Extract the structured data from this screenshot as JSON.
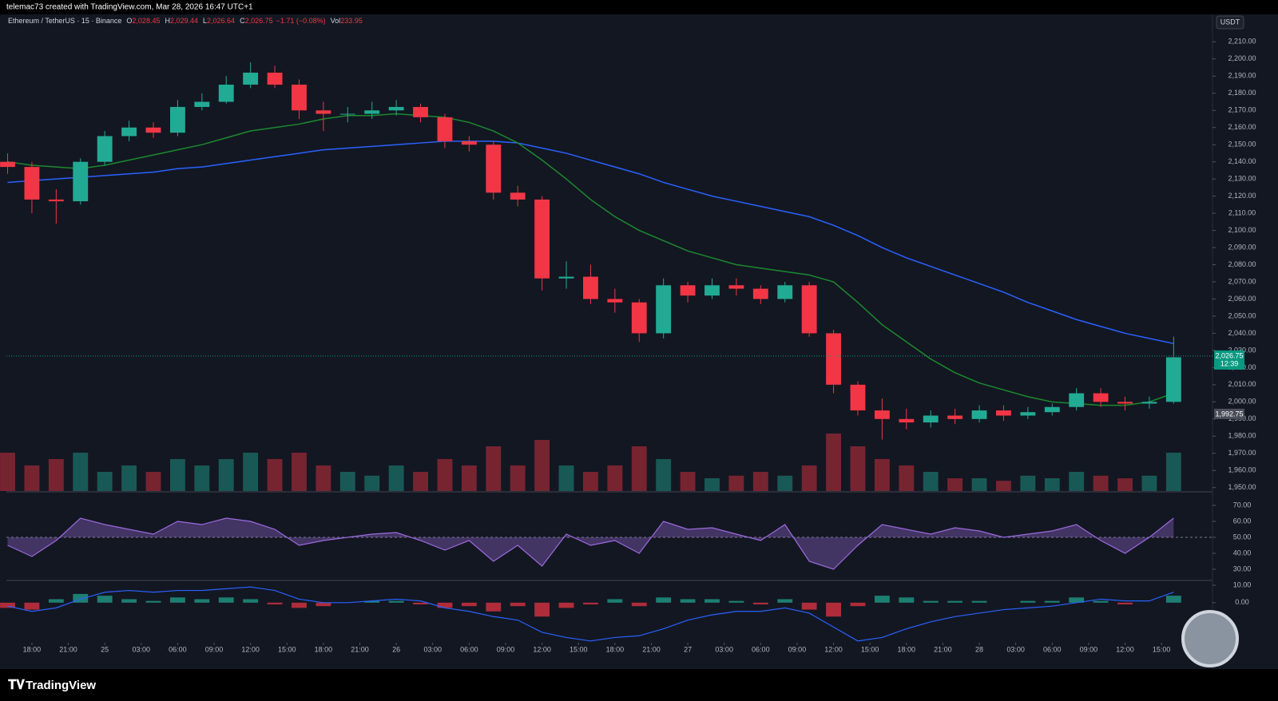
{
  "header": {
    "text": "telemac73 created with TradingView.com, Mar 28, 2026 16:47 UTC+1"
  },
  "chart_data": {
    "type": "candlestick",
    "symbol": "Ethereum / TetherUS · 15 · Binance",
    "ohlc_legend": [
      {
        "label": "O",
        "value": "2,028.45"
      },
      {
        "label": "H",
        "value": "2,029.44"
      },
      {
        "label": "L",
        "value": "2,026.64"
      },
      {
        "label": "C",
        "value": "2,026.75"
      }
    ],
    "change": "−1.71 (−0.08%)",
    "volume_legend": {
      "label": "Vol",
      "value": "233.95"
    },
    "currency": "USDT",
    "up_color": "#22ab94",
    "down_color": "#f23645",
    "x": [
      -2,
      0,
      2,
      4,
      6,
      8,
      10,
      12,
      14,
      16,
      18,
      20,
      22,
      24,
      26,
      28,
      30,
      32,
      34,
      36,
      38,
      40,
      42,
      44,
      46,
      48,
      50,
      52,
      54,
      56,
      58,
      60,
      62,
      64,
      66,
      68,
      70,
      72,
      74,
      76,
      78,
      80,
      82,
      84,
      86,
      88,
      90,
      92,
      94
    ],
    "open": [
      2140,
      2137,
      2118,
      2117,
      2140,
      2155,
      2160,
      2157,
      2172,
      2175,
      2185,
      2192,
      2185,
      2170,
      2168,
      2168,
      2170,
      2172,
      2166,
      2152,
      2150,
      2122,
      2118,
      2072,
      2073,
      2060,
      2058,
      2040,
      2068,
      2062,
      2068,
      2066,
      2060,
      2068,
      2040,
      2010,
      1995,
      1990,
      1988,
      1992,
      1990,
      1995,
      1992,
      1994,
      1997,
      2005,
      2000,
      1999,
      2000
    ],
    "high": [
      2145,
      2140,
      2124,
      2142,
      2158,
      2164,
      2163,
      2176,
      2180,
      2190,
      2198,
      2196,
      2188,
      2175,
      2172,
      2175,
      2176,
      2174,
      2168,
      2155,
      2152,
      2126,
      2120,
      2082,
      2080,
      2066,
      2060,
      2072,
      2070,
      2072,
      2072,
      2068,
      2070,
      2070,
      2042,
      2012,
      2002,
      1996,
      1995,
      1996,
      1998,
      1998,
      1997,
      1999,
      2008,
      2008,
      2003,
      2003,
      2038
    ],
    "low": [
      2133,
      2110,
      2104,
      2115,
      2138,
      2152,
      2154,
      2155,
      2170,
      2174,
      2183,
      2183,
      2165,
      2158,
      2163,
      2165,
      2167,
      2163,
      2148,
      2146,
      2118,
      2114,
      2065,
      2066,
      2057,
      2052,
      2035,
      2037,
      2058,
      2060,
      2062,
      2057,
      2058,
      2038,
      2005,
      1992,
      1978,
      1984,
      1985,
      1987,
      1988,
      1989,
      1990,
      1992,
      1995,
      1997,
      1995,
      1996,
      1999
    ],
    "close": [
      2137,
      2118,
      2117,
      2140,
      2155,
      2160,
      2157,
      2172,
      2175,
      2185,
      2192,
      2185,
      2170,
      2168,
      2168,
      2170,
      2172,
      2166,
      2152,
      2150,
      2122,
      2118,
      2072,
      2073,
      2060,
      2058,
      2040,
      2068,
      2062,
      2068,
      2066,
      2060,
      2068,
      2040,
      2010,
      1995,
      1990,
      1988,
      1992,
      1990,
      1995,
      1992,
      1994,
      1997,
      2005,
      2000,
      1999,
      2000,
      2026
    ],
    "lines": [
      {
        "color": "#2962ff",
        "values": [
          2128,
          2129,
          2130,
          2131,
          2132,
          2133,
          2134,
          2136,
          2137,
          2139,
          2141,
          2143,
          2145,
          2147,
          2148,
          2149,
          2150,
          2151,
          2152,
          2152,
          2152,
          2151,
          2148,
          2145,
          2141,
          2137,
          2133,
          2128,
          2124,
          2120,
          2117,
          2114,
          2111,
          2108,
          2103,
          2097,
          2090,
          2084,
          2079,
          2074,
          2069,
          2064,
          2058,
          2053,
          2048,
          2044,
          2040,
          2037,
          2034
        ]
      },
      {
        "color": "#1b8a2e",
        "values": [
          2140,
          2138,
          2137,
          2136,
          2138,
          2141,
          2144,
          2147,
          2150,
          2154,
          2158,
          2160,
          2162,
          2165,
          2167,
          2167,
          2168,
          2167,
          2166,
          2163,
          2158,
          2151,
          2141,
          2130,
          2118,
          2108,
          2100,
          2094,
          2088,
          2084,
          2080,
          2078,
          2076,
          2074,
          2070,
          2058,
          2045,
          2035,
          2025,
          2017,
          2011,
          2007,
          2003,
          2000,
          1999,
          1998,
          1998,
          2000,
          2005
        ]
      }
    ],
    "volume": {
      "values": [
        30,
        20,
        25,
        30,
        15,
        20,
        15,
        25,
        20,
        25,
        30,
        25,
        30,
        20,
        15,
        12,
        20,
        15,
        25,
        20,
        35,
        20,
        40,
        20,
        15,
        20,
        35,
        25,
        15,
        10,
        12,
        15,
        12,
        20,
        45,
        35,
        25,
        20,
        15,
        10,
        10,
        8,
        12,
        10,
        15,
        12,
        10,
        12,
        30
      ],
      "lim": [
        0,
        100
      ]
    },
    "xlim": [
      -2.1,
      97.2
    ],
    "xticks": [
      {
        "value": 0,
        "label": "18:00"
      },
      {
        "value": 3,
        "label": "21:00"
      },
      {
        "value": 6,
        "label": "25"
      },
      {
        "value": 9,
        "label": "03:00"
      },
      {
        "value": 12,
        "label": "06:00"
      },
      {
        "value": 15,
        "label": "09:00"
      },
      {
        "value": 18,
        "label": "12:00"
      },
      {
        "value": 21,
        "label": "15:00"
      },
      {
        "value": 24,
        "label": "18:00"
      },
      {
        "value": 27,
        "label": "21:00"
      },
      {
        "value": 30,
        "label": "26"
      },
      {
        "value": 33,
        "label": "03:00"
      },
      {
        "value": 36,
        "label": "06:00"
      },
      {
        "value": 39,
        "label": "09:00"
      },
      {
        "value": 42,
        "label": "12:00"
      },
      {
        "value": 45,
        "label": "15:00"
      },
      {
        "value": 48,
        "label": "18:00"
      },
      {
        "value": 51,
        "label": "21:00"
      },
      {
        "value": 54,
        "label": "27"
      },
      {
        "value": 57,
        "label": "03:00"
      },
      {
        "value": 60,
        "label": "06:00"
      },
      {
        "value": 63,
        "label": "09:00"
      },
      {
        "value": 66,
        "label": "12:00"
      },
      {
        "value": 69,
        "label": "15:00"
      },
      {
        "value": 72,
        "label": "18:00"
      },
      {
        "value": 75,
        "label": "21:00"
      },
      {
        "value": 78,
        "label": "28"
      },
      {
        "value": 81,
        "label": "03:00"
      },
      {
        "value": 84,
        "label": "06:00"
      },
      {
        "value": 87,
        "label": "09:00"
      },
      {
        "value": 90,
        "label": "12:00"
      },
      {
        "value": 93,
        "label": "15:00"
      }
    ],
    "ylim": [
      1948,
      2226
    ],
    "yticks": [
      {
        "value": 1950,
        "label": "1,950.00"
      },
      {
        "value": 1960,
        "label": "1,960.00"
      },
      {
        "value": 1970,
        "label": "1,970.00"
      },
      {
        "value": 1980,
        "label": "1,980.00"
      },
      {
        "value": 1990,
        "label": "1,990.00"
      },
      {
        "value": 2000,
        "label": "2,000.00"
      },
      {
        "value": 2010,
        "label": "2,010.00"
      },
      {
        "value": 2020,
        "label": "2,020.00"
      },
      {
        "value": 2030,
        "label": "2,030.00"
      },
      {
        "value": 2040,
        "label": "2,040.00"
      },
      {
        "value": 2050,
        "label": "2,050.00"
      },
      {
        "value": 2060,
        "label": "2,060.00"
      },
      {
        "value": 2070,
        "label": "2,070.00"
      },
      {
        "value": 2080,
        "label": "2,080.00"
      },
      {
        "value": 2090,
        "label": "2,090.00"
      },
      {
        "value": 2100,
        "label": "2,100.00"
      },
      {
        "value": 2110,
        "label": "2,110.00"
      },
      {
        "value": 2120,
        "label": "2,120.00"
      },
      {
        "value": 2130,
        "label": "2,130.00"
      },
      {
        "value": 2140,
        "label": "2,140.00"
      },
      {
        "value": 2150,
        "label": "2,150.00"
      },
      {
        "value": 2160,
        "label": "2,160.00"
      },
      {
        "value": 2170,
        "label": "2,170.00"
      },
      {
        "value": 2180,
        "label": "2,180.00"
      },
      {
        "value": 2190,
        "label": "2,190.00"
      },
      {
        "value": 2200,
        "label": "2,200.00"
      },
      {
        "value": 2210,
        "label": "2,210.00"
      }
    ],
    "price_labels": [
      {
        "value": 2026.75,
        "label": "2,026.75",
        "color": "#089981"
      },
      {
        "value": 1992.75,
        "label": "1,992.75",
        "color": "#4a4e59"
      }
    ],
    "countdown": "12:39",
    "rsi": {
      "color": "#9c6ade",
      "ylim": [
        24,
        77.5
      ],
      "yticks": [
        {
          "value": 30,
          "label": "30.00"
        },
        {
          "value": 40,
          "label": "40.00"
        },
        {
          "value": 50,
          "label": "50.00"
        },
        {
          "value": 60,
          "label": "60.00"
        },
        {
          "value": 70,
          "label": "70.00"
        }
      ],
      "mid": 50,
      "values": [
        45,
        38,
        48,
        62,
        58,
        55,
        52,
        60,
        58,
        62,
        60,
        55,
        45,
        48,
        50,
        52,
        53,
        48,
        42,
        48,
        35,
        45,
        32,
        52,
        45,
        48,
        40,
        60,
        55,
        56,
        52,
        48,
        58,
        35,
        30,
        45,
        58,
        55,
        52,
        56,
        54,
        50,
        52,
        54,
        58,
        48,
        40,
        50,
        62
      ]
    },
    "macd": {
      "ylim": [
        -23,
        12.3
      ],
      "yticks": [
        {
          "value": 0,
          "label": "0.00"
        },
        {
          "value": 10,
          "label": "10.00"
        }
      ],
      "line_color": "#2962ff",
      "histogram": [
        -3,
        -4,
        2,
        5,
        4,
        2,
        1,
        3,
        2,
        3,
        2,
        -1,
        -3,
        -2,
        0,
        1,
        1,
        -1,
        -3,
        -2,
        -5,
        -2,
        -8,
        -3,
        -1,
        2,
        -2,
        3,
        2,
        2,
        1,
        -1,
        2,
        -4,
        -8,
        -2,
        4,
        3,
        1,
        1,
        1,
        0,
        1,
        1,
        3,
        1,
        -1,
        0,
        4
      ],
      "line": [
        -2,
        -5,
        -3,
        2,
        6,
        7,
        6,
        7,
        7,
        8,
        9,
        7,
        2,
        0,
        0,
        1,
        2,
        1,
        -3,
        -5,
        -8,
        -10,
        -17,
        -20,
        -22,
        -20,
        -19,
        -15,
        -10,
        -7,
        -5,
        -5,
        -3,
        -6,
        -14,
        -22,
        -20,
        -15,
        -11,
        -8,
        -6,
        -4,
        -3,
        -2,
        0,
        2,
        1,
        1,
        6
      ]
    }
  },
  "footer": {
    "brand": "TradingView"
  }
}
